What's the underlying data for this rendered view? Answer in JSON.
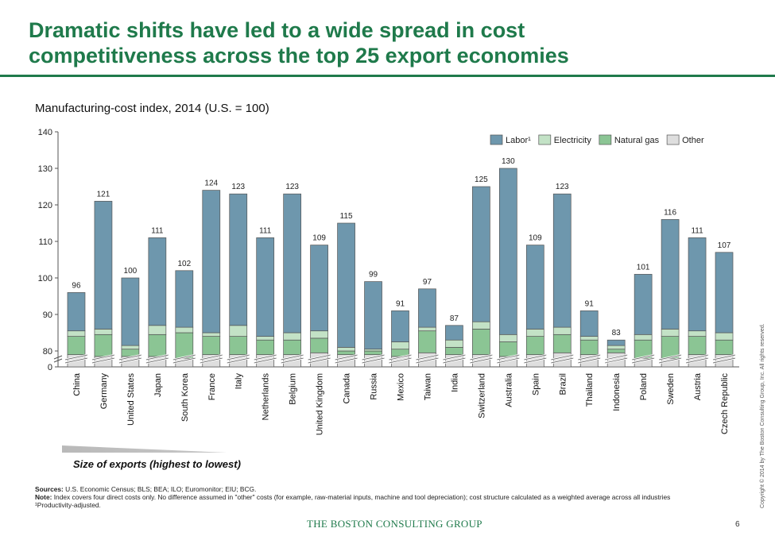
{
  "slide": {
    "title_line1": "Dramatic shifts have led to a wide spread in cost",
    "title_line2": "competitiveness across the top 25 export economies",
    "export_label": "Size of exports (highest to lowest)",
    "sources_label": "Sources:",
    "sources_text": " U.S. Economic Census; BLS; BEA; ILO; Euromonitor; EIU; BCG.",
    "note_label": "Note:",
    "note_text": " Index covers four direct costs only. No difference assumed in \"other\" costs (for example, raw-material inputs, machine and tool depreciation); cost structure calculated as a weighted average across all industries",
    "footnote": "¹Productivity-adjusted.",
    "brand": "THE BOSTON CONSULTING GROUP",
    "page_number": "6",
    "copyright": "Copyright © 2014 by The Boston Consulting Group, Inc. All rights reserved."
  },
  "colors": {
    "labor": "#6e97ad",
    "electricity": "#c3e2c6",
    "natural_gas": "#8bc594",
    "other": "#dedede",
    "title": "#1f7a4b"
  },
  "chart_data": {
    "type": "bar",
    "stacked": true,
    "title": "Manufacturing-cost index, 2014 (U.S. = 100)",
    "ylim": [
      0,
      140
    ],
    "axis_break": [
      0,
      80
    ],
    "yticks": [
      0,
      80,
      90,
      100,
      110,
      120,
      130,
      140
    ],
    "legend_position": "top-right",
    "categories": [
      "China",
      "Germany",
      "United States",
      "Japan",
      "South Korea",
      "France",
      "Italy",
      "Netherlands",
      "Belgium",
      "United Kingdom",
      "Canada",
      "Russia",
      "Mexico",
      "Taiwan",
      "India",
      "Switzerland",
      "Australia",
      "Spain",
      "Brazil",
      "Thailand",
      "Indonesia",
      "Poland",
      "Sweden",
      "Austria",
      "Czech Republic"
    ],
    "totals": [
      96,
      121,
      100,
      111,
      102,
      124,
      123,
      111,
      123,
      109,
      115,
      99,
      91,
      97,
      87,
      125,
      130,
      109,
      123,
      91,
      83,
      101,
      116,
      111,
      107
    ],
    "series": [
      {
        "name": "Labor¹",
        "key": "labor",
        "values": [
          10.5,
          35,
          18.5,
          24,
          15.5,
          39,
          36,
          27,
          38,
          23.5,
          34,
          18.5,
          8.5,
          10.5,
          4,
          37,
          45.5,
          23,
          36.5,
          7,
          1.5,
          16.5,
          30,
          25.5,
          22
        ]
      },
      {
        "name": "Electricity",
        "key": "electricity",
        "values": [
          1.5,
          1.5,
          1,
          2.5,
          1.5,
          1,
          3,
          1,
          2,
          2,
          1,
          0.5,
          2,
          1,
          2,
          2,
          2,
          2,
          2,
          1,
          1,
          1.5,
          2,
          1.5,
          2
        ]
      },
      {
        "name": "Natural gas",
        "key": "natural_gas",
        "values": [
          5,
          6,
          2,
          6,
          7,
          5,
          5,
          4,
          4,
          4,
          1,
          1,
          2,
          6,
          2,
          7,
          4,
          5,
          5,
          4,
          1,
          5,
          6,
          5,
          4
        ]
      },
      {
        "name": "Other",
        "key": "other",
        "values": [
          79,
          78.5,
          78.5,
          78.5,
          78,
          79,
          79,
          79,
          79,
          79.5,
          79,
          79,
          78.5,
          79.5,
          79,
          79,
          78.5,
          79,
          79.5,
          79,
          79.5,
          78,
          78,
          79,
          79
        ]
      }
    ]
  }
}
